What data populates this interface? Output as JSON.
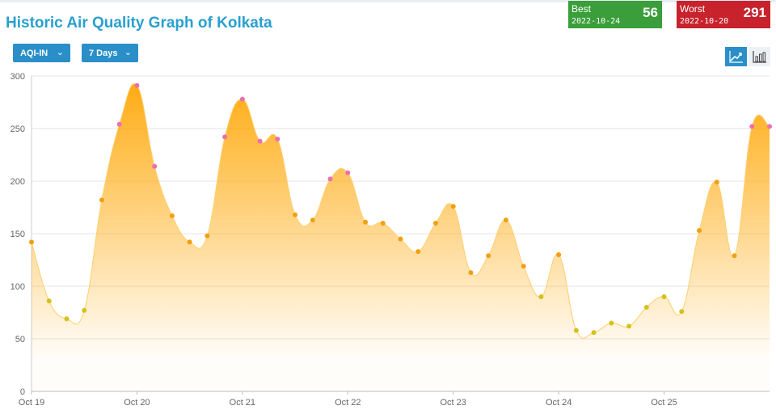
{
  "page": {
    "title": "Historic Air Quality Graph of Kolkata"
  },
  "controls": {
    "metric_select": "AQI-IN",
    "range_select": "7 Days",
    "line_view_icon": "line-chart-icon",
    "bar_view_icon": "bar-chart-icon"
  },
  "best": {
    "label": "Best",
    "date": "2022-10-24",
    "value": "56",
    "color": "#3a9e3a"
  },
  "worst": {
    "label": "Worst",
    "date": "2022-10-20",
    "value": "291",
    "color": "#c8222c"
  },
  "chart_data": {
    "type": "area",
    "title": "",
    "xlabel": "",
    "ylabel": "",
    "ylim": [
      0,
      300
    ],
    "y_ticks": [
      0,
      50,
      100,
      150,
      200,
      250,
      300
    ],
    "x_tick_labels": [
      "Oct 19",
      "Oct 20",
      "Oct 21",
      "Oct 22",
      "Oct 23",
      "Oct 24",
      "Oct 25"
    ],
    "grid": true,
    "legend": "none",
    "fill_color": "#ffa500",
    "series": [
      {
        "name": "AQI-IN",
        "x": [
          "2022-10-19 00:00",
          "2022-10-19 04:00",
          "2022-10-19 08:00",
          "2022-10-19 12:00",
          "2022-10-19 16:00",
          "2022-10-19 20:00",
          "2022-10-20 00:00",
          "2022-10-20 04:00",
          "2022-10-20 08:00",
          "2022-10-20 12:00",
          "2022-10-20 16:00",
          "2022-10-20 20:00",
          "2022-10-21 00:00",
          "2022-10-21 04:00",
          "2022-10-21 08:00",
          "2022-10-21 12:00",
          "2022-10-21 16:00",
          "2022-10-21 20:00",
          "2022-10-22 00:00",
          "2022-10-22 04:00",
          "2022-10-22 08:00",
          "2022-10-22 12:00",
          "2022-10-22 16:00",
          "2022-10-22 20:00",
          "2022-10-23 00:00",
          "2022-10-23 04:00",
          "2022-10-23 08:00",
          "2022-10-23 12:00",
          "2022-10-23 16:00",
          "2022-10-23 20:00",
          "2022-10-24 00:00",
          "2022-10-24 04:00",
          "2022-10-24 08:00",
          "2022-10-24 12:00",
          "2022-10-24 16:00",
          "2022-10-24 20:00",
          "2022-10-25 00:00",
          "2022-10-25 04:00",
          "2022-10-25 08:00",
          "2022-10-25 12:00",
          "2022-10-25 16:00",
          "2022-10-25 20:00",
          "2022-10-26 00:00"
        ],
        "values": [
          142,
          86,
          69,
          77,
          182,
          254,
          291,
          214,
          167,
          142,
          148,
          242,
          278,
          238,
          240,
          168,
          163,
          202,
          208,
          161,
          160,
          145,
          133,
          160,
          176,
          113,
          129,
          163,
          119,
          90,
          130,
          58,
          56,
          65,
          62,
          80,
          90,
          76,
          153,
          199,
          129,
          252,
          252
        ]
      }
    ],
    "marker_colors": {
      "low": "#d4c21a",
      "mid": "#f0a010",
      "high": "#ec6fae"
    }
  }
}
